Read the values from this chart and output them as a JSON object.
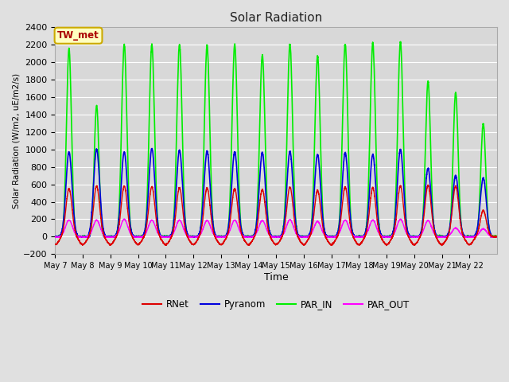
{
  "title": "Solar Radiation",
  "ylabel": "Solar Radiation (W/m2, uE/m2/s)",
  "xlabel": "Time",
  "ylim": [
    -200,
    2400
  ],
  "yticks": [
    -200,
    0,
    200,
    400,
    600,
    800,
    1000,
    1200,
    1400,
    1600,
    1800,
    2000,
    2200,
    2400
  ],
  "annotation_text": "TW_met",
  "annotation_box_facecolor": "#FFFFC0",
  "annotation_box_edgecolor": "#CCAA00",
  "line_colors": {
    "RNet": "#DD0000",
    "Pyranom": "#0000DD",
    "PAR_IN": "#00EE00",
    "PAR_OUT": "#FF00FF"
  },
  "line_widths": {
    "RNet": 1.0,
    "Pyranom": 1.2,
    "PAR_IN": 1.2,
    "PAR_OUT": 1.0
  },
  "fig_facecolor": "#E0E0E0",
  "axes_facecolor": "#D8D8D8",
  "grid_color": "#FFFFFF",
  "n_days": 16,
  "start_day": 7,
  "points_per_day": 288,
  "par_in_peaks": [
    2150,
    1500,
    2200,
    2200,
    2200,
    2190,
    2200,
    2080,
    2200,
    2070,
    2200,
    2220,
    2230,
    1780,
    1650,
    1290
  ],
  "par_in_sigma": [
    0.09,
    0.085,
    0.095,
    0.095,
    0.095,
    0.095,
    0.095,
    0.095,
    0.095,
    0.095,
    0.095,
    0.095,
    0.095,
    0.09,
    0.09,
    0.09
  ],
  "pyranom_peaks": [
    970,
    1000,
    970,
    1010,
    990,
    980,
    970,
    960,
    975,
    940,
    960,
    940,
    1000,
    780,
    700,
    670
  ],
  "pyranom_sigma": 0.11,
  "rnet_peaks": [
    550,
    580,
    580,
    570,
    560,
    560,
    550,
    540,
    570,
    530,
    570,
    560,
    580,
    590,
    580,
    300
  ],
  "rnet_sigma": 0.11,
  "rnet_night": -90,
  "rnet_night_sigma": 0.12,
  "par_out_peaks": [
    190,
    190,
    200,
    190,
    190,
    185,
    190,
    185,
    195,
    175,
    190,
    190,
    200,
    185,
    100,
    90
  ],
  "par_out_sigma": 0.125,
  "xtick_start_day": 7,
  "xtick_end_day": 22
}
